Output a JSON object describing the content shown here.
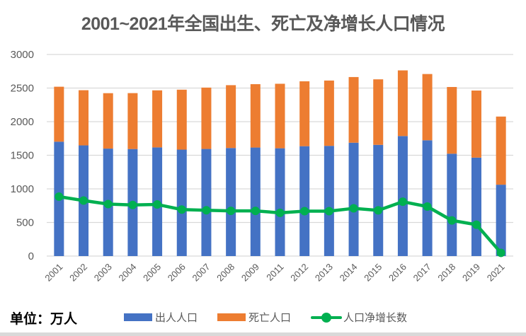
{
  "chart_data": {
    "type": "bar",
    "stacked": true,
    "title": "2001~2021年全国出生、死亡及净增长人口情况",
    "unit_label": "单位：万人",
    "xlabel": "",
    "ylabel": "",
    "ylim": [
      0,
      3000
    ],
    "yticks": [
      0,
      500,
      1000,
      1500,
      2000,
      2500,
      3000
    ],
    "grid": true,
    "legend_position": "bottom",
    "categories": [
      "2001",
      "2002",
      "2003",
      "2004",
      "2005",
      "2006",
      "2007",
      "2008",
      "2009",
      "2011",
      "2012",
      "2013",
      "2014",
      "2015",
      "2016",
      "2017",
      "2018",
      "2019",
      "2021"
    ],
    "series": [
      {
        "name": "出人人口",
        "type": "bar",
        "color": "#4472c4",
        "values": [
          1702,
          1647,
          1599,
          1593,
          1617,
          1584,
          1594,
          1608,
          1615,
          1604,
          1635,
          1640,
          1687,
          1655,
          1786,
          1723,
          1523,
          1465,
          1062
        ]
      },
      {
        "name": "死亡人口",
        "type": "bar",
        "color": "#ed7d31",
        "values": [
          818,
          821,
          825,
          832,
          849,
          892,
          913,
          935,
          943,
          960,
          966,
          972,
          977,
          975,
          977,
          986,
          993,
          998,
          1014
        ]
      },
      {
        "name": "人口净增长数",
        "type": "line",
        "color": "#00b050",
        "values": [
          884,
          826,
          774,
          761,
          768,
          692,
          681,
          673,
          672,
          644,
          669,
          668,
          710,
          680,
          809,
          737,
          530,
          467,
          48
        ]
      }
    ]
  }
}
